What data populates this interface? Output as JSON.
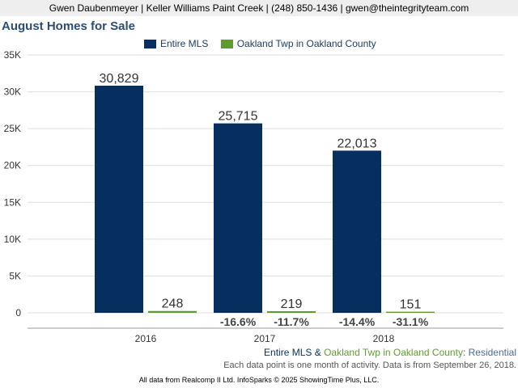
{
  "header": {
    "contact_line": "Gwen Daubenmeyer | Keller Williams Paint Creek | (248) 850-1436 | gwen@theintegrityteam.com"
  },
  "chart_data": {
    "type": "bar",
    "title": "August Homes for Sale",
    "categories": [
      "2016",
      "2017",
      "2018"
    ],
    "series": [
      {
        "name": "Entire MLS",
        "color": "#062f5f",
        "values": [
          30829,
          25715,
          22013
        ],
        "value_labels": [
          "30,829",
          "25,715",
          "22,013"
        ],
        "change_labels": [
          "",
          "-16.6%",
          "-14.4%"
        ]
      },
      {
        "name": "Oakland Twp in Oakland County",
        "color": "#5f9b2e",
        "values": [
          248,
          219,
          151
        ],
        "value_labels": [
          "248",
          "219",
          "151"
        ],
        "change_labels": [
          "",
          "-11.7%",
          "-31.1%"
        ]
      }
    ],
    "ylim": [
      0,
      35000
    ],
    "yticks": [
      0,
      5000,
      10000,
      15000,
      20000,
      25000,
      30000,
      35000
    ],
    "ytick_labels": [
      "0",
      "5K",
      "10K",
      "15K",
      "20K",
      "25K",
      "30K",
      "35K"
    ],
    "grid": true,
    "legend_position": "top"
  },
  "footer": {
    "series_a": "Entire MLS",
    "amp": " & ",
    "series_b": "Oakland Twp in Oakland County",
    "colon": ": ",
    "category": "Residential",
    "note": "Each data point is one month of activity. Data is from September 26, 2018.",
    "copyright": "All data from Realcomp II Ltd. InfoSparks © 2025 ShowingTime Plus, LLC."
  }
}
